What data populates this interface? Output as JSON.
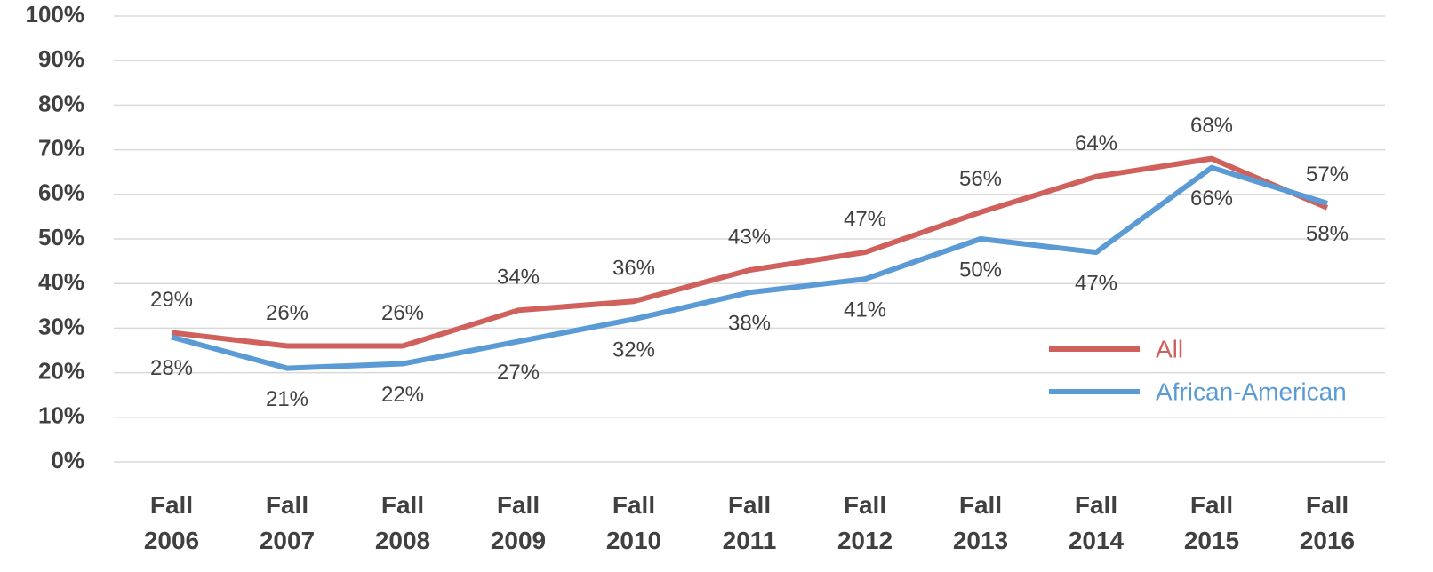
{
  "chart_data": {
    "type": "line",
    "categories": [
      "Fall 2006",
      "Fall 2007",
      "Fall 2008",
      "Fall 2009",
      "Fall 2010",
      "Fall 2011",
      "Fall 2012",
      "Fall 2013",
      "Fall 2014",
      "Fall 2015",
      "Fall 2016"
    ],
    "series": [
      {
        "name": "All",
        "color": "#d0605c",
        "values": [
          29,
          26,
          26,
          34,
          36,
          43,
          47,
          56,
          64,
          68,
          57
        ],
        "value_labels": [
          "29%",
          "26%",
          "26%",
          "34%",
          "36%",
          "43%",
          "47%",
          "56%",
          "64%",
          "68%",
          "57%"
        ]
      },
      {
        "name": "African-American",
        "color": "#5b9bd5",
        "values": [
          28,
          21,
          22,
          27,
          32,
          38,
          41,
          50,
          47,
          66,
          58
        ],
        "value_labels": [
          "28%",
          "21%",
          "22%",
          "27%",
          "32%",
          "38%",
          "41%",
          "50%",
          "47%",
          "66%",
          "58%"
        ]
      }
    ],
    "ylim": [
      0,
      100
    ],
    "yticks": [
      {
        "value": 0,
        "label": "0%"
      },
      {
        "value": 10,
        "label": "10%"
      },
      {
        "value": 20,
        "label": "20%"
      },
      {
        "value": 30,
        "label": "30%"
      },
      {
        "value": 40,
        "label": "40%"
      },
      {
        "value": 50,
        "label": "50%"
      },
      {
        "value": 60,
        "label": "60%"
      },
      {
        "value": 70,
        "label": "70%"
      },
      {
        "value": 80,
        "label": "80%"
      },
      {
        "value": 90,
        "label": "90%"
      },
      {
        "value": 100,
        "label": "100%"
      }
    ],
    "grid": true,
    "legend": "right"
  }
}
